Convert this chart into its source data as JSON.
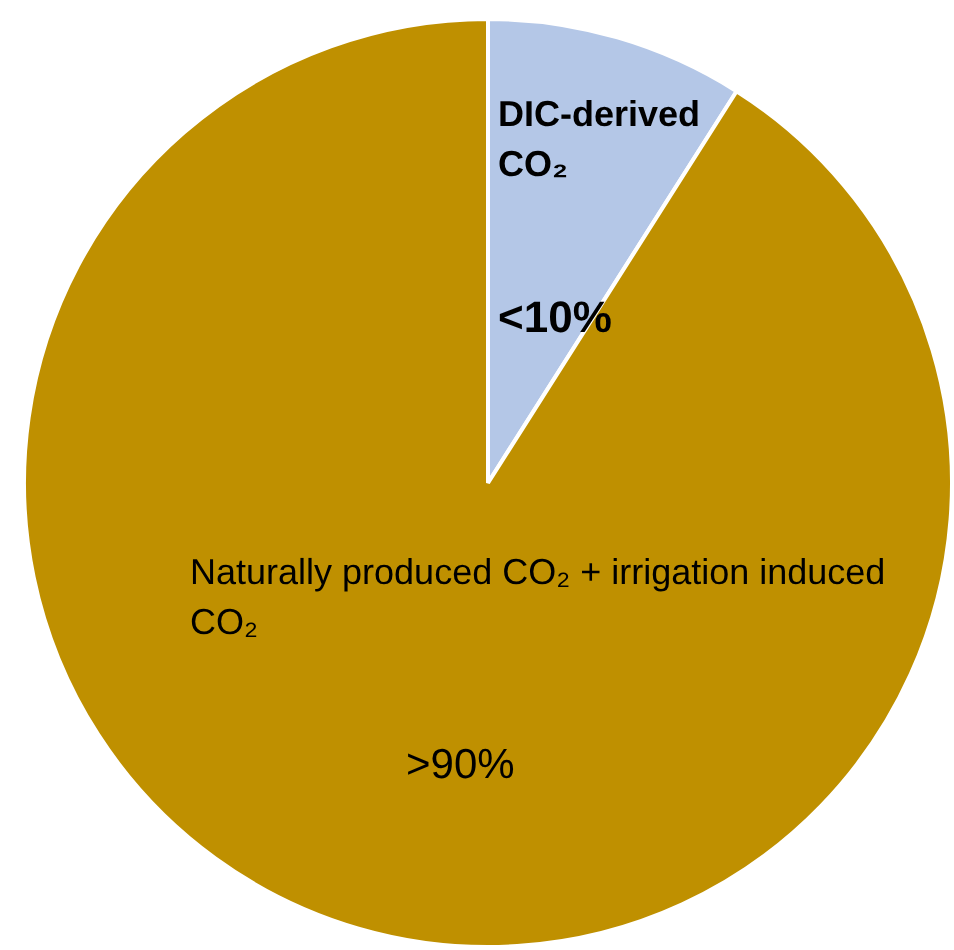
{
  "chart_data": {
    "type": "pie",
    "categories": [
      "DIC-derived CO₂",
      "Naturally produced CO₂ + irrigation induced CO₂"
    ],
    "values": [
      9,
      91
    ],
    "value_labels": [
      "<10%",
      ">90%"
    ],
    "colors": [
      "#b4c7e7",
      "#bf9000"
    ],
    "legend": false
  }
}
